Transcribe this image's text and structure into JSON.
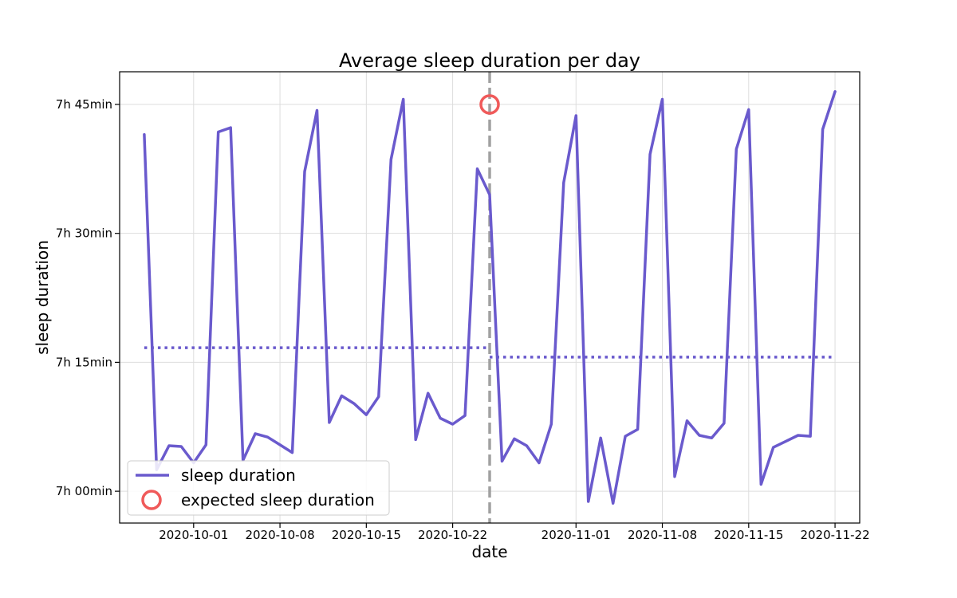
{
  "chart_data": {
    "type": "line",
    "title": "Average sleep duration per day",
    "xlabel": "date",
    "ylabel": "sleep duration",
    "x_tick_labels": [
      "2020-10-01",
      "2020-10-08",
      "2020-10-15",
      "2020-10-22",
      "2020-11-01",
      "2020-11-08",
      "2020-11-15",
      "2020-11-22"
    ],
    "y_ticks": [
      {
        "value": 420,
        "label": "7h 00min"
      },
      {
        "value": 435,
        "label": "7h 15min"
      },
      {
        "value": 450,
        "label": "7h 30min"
      },
      {
        "value": 465,
        "label": "7h 45min"
      }
    ],
    "xlim": [
      "2020-09-25",
      "2020-11-24"
    ],
    "ylim": [
      416.3,
      468.8
    ],
    "grid": true,
    "legend_position": "lower-left",
    "colors": {
      "series": "#6a5acd",
      "expected": "#f05a5a",
      "divider": "#a0a0a0"
    },
    "series": [
      {
        "name": "sleep duration",
        "x": [
          "2020-09-27",
          "2020-09-28",
          "2020-09-29",
          "2020-09-30",
          "2020-10-01",
          "2020-10-02",
          "2020-10-03",
          "2020-10-04",
          "2020-10-05",
          "2020-10-06",
          "2020-10-07",
          "2020-10-08",
          "2020-10-09",
          "2020-10-10",
          "2020-10-11",
          "2020-10-12",
          "2020-10-13",
          "2020-10-14",
          "2020-10-15",
          "2020-10-16",
          "2020-10-17",
          "2020-10-18",
          "2020-10-19",
          "2020-10-20",
          "2020-10-21",
          "2020-10-22",
          "2020-10-23",
          "2020-10-24",
          "2020-10-25",
          "2020-10-26",
          "2020-10-27",
          "2020-10-28",
          "2020-10-29",
          "2020-10-30",
          "2020-10-31",
          "2020-11-01",
          "2020-11-02",
          "2020-11-03",
          "2020-11-04",
          "2020-11-05",
          "2020-11-06",
          "2020-11-07",
          "2020-11-08",
          "2020-11-09",
          "2020-11-10",
          "2020-11-11",
          "2020-11-12",
          "2020-11-13",
          "2020-11-14",
          "2020-11-15",
          "2020-11-16",
          "2020-11-17",
          "2020-11-18",
          "2020-11-19",
          "2020-11-20",
          "2020-11-21",
          "2020-11-22"
        ],
        "y": [
          461.5,
          422.5,
          425.3,
          425.2,
          423.3,
          425.4,
          461.8,
          462.3,
          423.6,
          426.7,
          426.3,
          425.4,
          424.5,
          457.2,
          464.3,
          428.0,
          431.1,
          430.2,
          428.9,
          431.0,
          458.6,
          465.6,
          426.0,
          431.4,
          428.5,
          427.8,
          428.8,
          457.5,
          454.5,
          423.5,
          426.1,
          425.3,
          423.3,
          427.8,
          455.9,
          463.7,
          418.8,
          426.2,
          418.6,
          426.4,
          427.2,
          459.2,
          465.6,
          421.7,
          428.2,
          426.5,
          426.2,
          427.9,
          459.8,
          464.4,
          420.8,
          425.1,
          425.8,
          426.5,
          426.4,
          462.1,
          466.5
        ]
      },
      {
        "name": "average before divider",
        "x": [
          "2020-09-27",
          "2020-10-25"
        ],
        "y": [
          436.7,
          436.7
        ]
      },
      {
        "name": "average after divider",
        "x": [
          "2020-10-25",
          "2020-11-22"
        ],
        "y": [
          435.6,
          435.6
        ]
      }
    ],
    "divider_date": "2020-10-25",
    "expected_point": {
      "name": "expected sleep duration",
      "x": "2020-10-25",
      "y": 465
    },
    "legend": [
      {
        "label": "sleep duration",
        "marker": "line"
      },
      {
        "label": "expected sleep duration",
        "marker": "circle"
      }
    ]
  }
}
